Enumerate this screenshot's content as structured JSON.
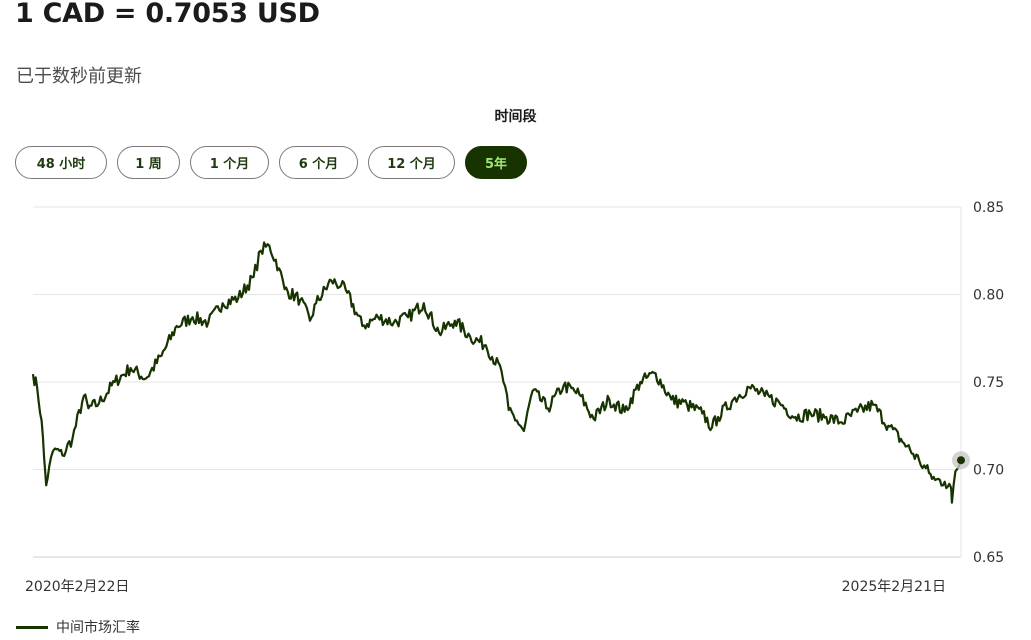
{
  "header": {
    "rate": "1 CAD = 0.7053 USD",
    "updated": "已于数秒前更新"
  },
  "period": {
    "label": "时间段",
    "buttons": [
      "48 小时",
      "1 周",
      "1 个月",
      "6 个月",
      "12 个月",
      "5年"
    ],
    "active_index": 5
  },
  "colors": {
    "line": "#163300",
    "active_bg": "#163300",
    "active_text": "#9fe870",
    "grid": "#e6e6e6"
  },
  "legend": {
    "label": "中间市场汇率"
  },
  "chart_data": {
    "type": "line",
    "title": "",
    "xlabel": "",
    "ylabel": "",
    "x_tick_labels": [
      "2020年2月22日",
      "2025年2月21日"
    ],
    "y_ticks": [
      "0.85",
      "0.80",
      "0.75",
      "0.70",
      "0.65"
    ],
    "ylim": [
      0.65,
      0.85
    ],
    "x_range": [
      "2020-02-22",
      "2025-02-21"
    ],
    "grid": true,
    "legend_position": "bottom-left",
    "series": [
      {
        "name": "中间市场汇率",
        "x": [
          "2020-02-22",
          "2020-03-01",
          "2020-03-10",
          "2020-03-15",
          "2020-03-19",
          "2020-03-25",
          "2020-04-05",
          "2020-04-20",
          "2020-05-10",
          "2020-06-01",
          "2020-06-10",
          "2020-07-01",
          "2020-08-01",
          "2020-09-01",
          "2020-10-01",
          "2020-11-01",
          "2020-12-01",
          "2021-01-01",
          "2021-02-01",
          "2021-03-01",
          "2021-04-01",
          "2021-05-01",
          "2021-05-15",
          "2021-06-01",
          "2021-06-20",
          "2021-07-01",
          "2021-08-01",
          "2021-08-20",
          "2021-09-01",
          "2021-10-01",
          "2021-10-20",
          "2021-11-01",
          "2021-12-01",
          "2022-01-01",
          "2022-02-01",
          "2022-03-01",
          "2022-04-01",
          "2022-05-01",
          "2022-06-01",
          "2022-07-01",
          "2022-08-01",
          "2022-09-01",
          "2022-09-15",
          "2022-10-01",
          "2022-10-15",
          "2022-11-01",
          "2022-12-01",
          "2023-01-01",
          "2023-02-01",
          "2023-03-01",
          "2023-04-01",
          "2023-05-01",
          "2023-06-01",
          "2023-07-01",
          "2023-08-01",
          "2023-09-01",
          "2023-10-01",
          "2023-10-20",
          "2023-11-01",
          "2023-12-01",
          "2024-01-01",
          "2024-02-01",
          "2024-03-01",
          "2024-04-01",
          "2024-05-01",
          "2024-06-01",
          "2024-07-01",
          "2024-08-01",
          "2024-09-01",
          "2024-10-01",
          "2024-11-01",
          "2024-12-01",
          "2024-12-20",
          "2025-01-01",
          "2025-01-20",
          "2025-02-01",
          "2025-02-03",
          "2025-02-10",
          "2025-02-21"
        ],
        "y": [
          0.7545,
          0.747,
          0.728,
          0.706,
          0.691,
          0.702,
          0.712,
          0.708,
          0.718,
          0.742,
          0.735,
          0.738,
          0.75,
          0.758,
          0.752,
          0.765,
          0.782,
          0.787,
          0.784,
          0.795,
          0.798,
          0.81,
          0.825,
          0.828,
          0.815,
          0.803,
          0.797,
          0.785,
          0.795,
          0.808,
          0.805,
          0.801,
          0.782,
          0.787,
          0.784,
          0.787,
          0.795,
          0.778,
          0.785,
          0.776,
          0.771,
          0.756,
          0.734,
          0.728,
          0.722,
          0.745,
          0.735,
          0.748,
          0.743,
          0.729,
          0.74,
          0.733,
          0.75,
          0.755,
          0.74,
          0.737,
          0.732,
          0.724,
          0.73,
          0.74,
          0.747,
          0.742,
          0.738,
          0.73,
          0.732,
          0.73,
          0.727,
          0.733,
          0.737,
          0.725,
          0.715,
          0.705,
          0.698,
          0.694,
          0.693,
          0.69,
          0.681,
          0.699,
          0.7053
        ]
      }
    ]
  }
}
